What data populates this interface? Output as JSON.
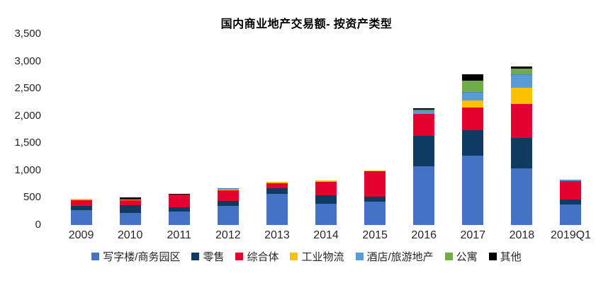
{
  "title": "国内商业地产交易额- 按资产类型",
  "chart_data": {
    "type": "bar",
    "stacked": true,
    "title": "国内商业地产交易额- 按资产类型",
    "xlabel": "",
    "ylabel": "",
    "ylim": [
      0,
      3500
    ],
    "ytick_step": 500,
    "ytick_labels": [
      "0",
      "500",
      "1,000",
      "1,500",
      "2,000",
      "2,500",
      "3,000",
      "3,500"
    ],
    "grid": false,
    "legend_position": "bottom",
    "categories": [
      "2009",
      "2010",
      "2011",
      "2012",
      "2013",
      "2014",
      "2015",
      "2016",
      "2017",
      "2018",
      "2019Q1"
    ],
    "series": [
      {
        "key": "office",
        "name": "写字楼/商务园区",
        "color": "#4472C4",
        "values": [
          270,
          220,
          250,
          355,
          570,
          390,
          430,
          1080,
          1275,
          1040,
          370
        ]
      },
      {
        "key": "retail",
        "name": "零售",
        "color": "#0F3A62",
        "values": [
          80,
          145,
          80,
          90,
          110,
          160,
          85,
          560,
          465,
          560,
          100
        ]
      },
      {
        "key": "mixed",
        "name": "综合体",
        "color": "#E4032E",
        "values": [
          110,
          90,
          225,
          185,
          85,
          245,
          470,
          390,
          415,
          615,
          330
        ]
      },
      {
        "key": "industrial",
        "name": "工业物流",
        "color": "#FFC000",
        "values": [
          20,
          15,
          0,
          20,
          20,
          20,
          20,
          0,
          130,
          295,
          0
        ]
      },
      {
        "key": "hotel",
        "name": "酒店/旅游地产",
        "color": "#5B9BD5",
        "values": [
          0,
          0,
          0,
          20,
          0,
          0,
          0,
          65,
          155,
          250,
          25
        ]
      },
      {
        "key": "apartment",
        "name": "公寓",
        "color": "#70AD47",
        "values": [
          0,
          0,
          0,
          0,
          0,
          0,
          0,
          15,
          205,
          110,
          0
        ]
      },
      {
        "key": "other",
        "name": "其他",
        "color": "#000000",
        "values": [
          0,
          30,
          20,
          0,
          0,
          0,
          0,
          25,
          120,
          35,
          0
        ]
      }
    ],
    "totals": [
      480,
      500,
      575,
      670,
      785,
      815,
      1005,
      2135,
      2765,
      2905,
      825
    ]
  }
}
